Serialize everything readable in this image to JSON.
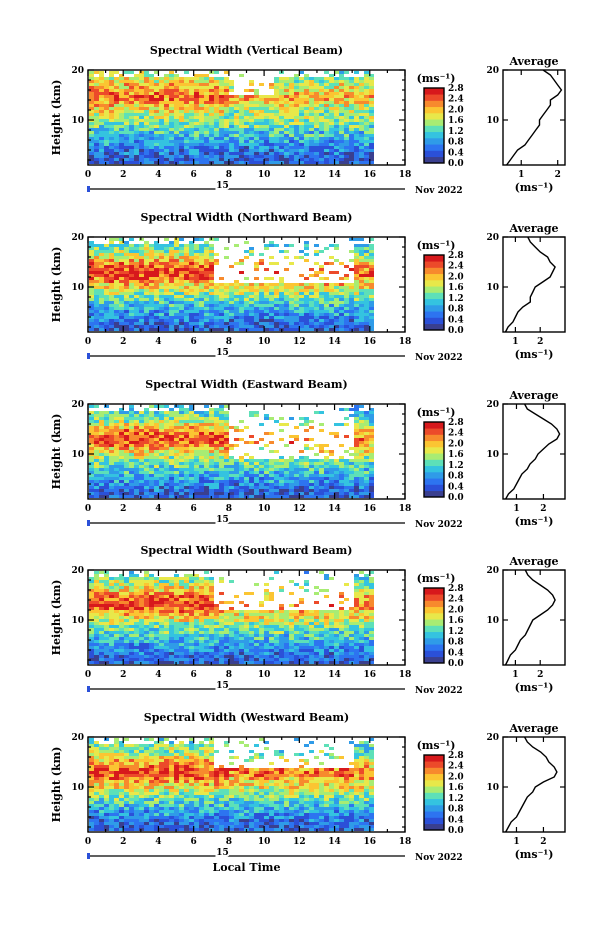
{
  "figure": {
    "x_label": "Local Time",
    "date_label": "Nov 2022",
    "day_label": "15",
    "y_label": "Height (km)",
    "colorbar_unit": "(ms⁻¹)",
    "avg_title": "Average",
    "avg_xlabel": "(ms⁻¹)"
  },
  "colors": {
    "background": "#ffffff",
    "axis": "#000000",
    "colormap": [
      "#3a3f8f",
      "#2b50d8",
      "#2d74f0",
      "#2f9be8",
      "#34c3e0",
      "#5de0b8",
      "#a8ec73",
      "#e8e84a",
      "#fbc532",
      "#f78a2d",
      "#ec4a2a",
      "#d7191c"
    ]
  },
  "chart_data": [
    {
      "type": "heatmap",
      "title": "Spectral Width (Vertical Beam)",
      "xlabel": "",
      "ylabel": "Height (km)",
      "xlim": [
        0,
        18
      ],
      "ylim": [
        1,
        20
      ],
      "x_ticks": [
        "0",
        "2",
        "4",
        "6",
        "8",
        "10",
        "12",
        "14",
        "16",
        "18"
      ],
      "y_ticks": [
        "10",
        "20"
      ],
      "data_end_hour": 16,
      "data_gap": [
        8,
        10.5,
        15,
        20
      ],
      "colorbar": {
        "min": 0.0,
        "max": 2.8,
        "ticks": [
          "0.0",
          "0.4",
          "0.8",
          "1.2",
          "1.6",
          "2.0",
          "2.4",
          "2.8"
        ]
      },
      "height_profile_km": [
        1,
        3,
        5,
        7,
        9,
        11,
        13,
        15,
        17,
        19
      ],
      "width_profile_ms": [
        0.4,
        0.5,
        0.7,
        1.0,
        1.3,
        1.6,
        2.0,
        2.3,
        2.0,
        1.6
      ],
      "average": {
        "type": "line",
        "xlim": [
          0.5,
          2.2
        ],
        "x_ticks": [
          "1",
          "2"
        ],
        "y_ticks": [
          "10",
          "20"
        ],
        "height": [
          1,
          2,
          3,
          4,
          5,
          6,
          7,
          8,
          9,
          10,
          11,
          12,
          13,
          14,
          15,
          16,
          17,
          18,
          19,
          20
        ],
        "value": [
          0.6,
          0.7,
          0.8,
          0.9,
          1.1,
          1.2,
          1.3,
          1.4,
          1.5,
          1.5,
          1.6,
          1.7,
          1.8,
          1.8,
          2.0,
          2.1,
          2.0,
          1.9,
          1.8,
          1.6
        ]
      }
    },
    {
      "type": "heatmap",
      "title": "Spectral Width (Northward Beam)",
      "xlabel": "",
      "ylabel": "Height (km)",
      "xlim": [
        0,
        18
      ],
      "ylim": [
        1,
        20
      ],
      "x_ticks": [
        "0",
        "2",
        "4",
        "6",
        "8",
        "10",
        "12",
        "14",
        "16",
        "18"
      ],
      "y_ticks": [
        "10",
        "20"
      ],
      "data_end_hour": 16,
      "data_gap": [
        7,
        15,
        11,
        20
      ],
      "colorbar": {
        "min": 0.0,
        "max": 2.8,
        "ticks": [
          "0.0",
          "0.4",
          "0.8",
          "1.2",
          "1.6",
          "2.0",
          "2.4",
          "2.8"
        ]
      },
      "height_profile_km": [
        1,
        3,
        5,
        7,
        9,
        11,
        13,
        15,
        17,
        19
      ],
      "width_profile_ms": [
        0.4,
        0.5,
        0.8,
        1.1,
        1.5,
        2.0,
        2.6,
        2.2,
        1.6,
        1.3
      ],
      "average": {
        "type": "line",
        "xlim": [
          0.5,
          3.0
        ],
        "x_ticks": [
          "1",
          "2"
        ],
        "y_ticks": [
          "10",
          "20"
        ],
        "height": [
          1,
          2,
          3,
          4,
          5,
          6,
          7,
          8,
          9,
          10,
          11,
          12,
          13,
          14,
          15,
          16,
          17,
          18,
          19,
          20
        ],
        "value": [
          0.6,
          0.7,
          0.9,
          1.0,
          1.1,
          1.3,
          1.6,
          1.6,
          1.7,
          1.8,
          2.1,
          2.4,
          2.5,
          2.6,
          2.4,
          2.3,
          2.0,
          1.8,
          1.6,
          1.5
        ]
      }
    },
    {
      "type": "heatmap",
      "title": "Spectral Width (Eastward Beam)",
      "xlabel": "",
      "ylabel": "Height (km)",
      "xlim": [
        0,
        18
      ],
      "ylim": [
        1,
        20
      ],
      "x_ticks": [
        "0",
        "2",
        "4",
        "6",
        "8",
        "10",
        "12",
        "14",
        "16",
        "18"
      ],
      "y_ticks": [
        "10",
        "20"
      ],
      "data_end_hour": 16,
      "data_gap": [
        8,
        15,
        9,
        20
      ],
      "colorbar": {
        "min": 0.0,
        "max": 2.8,
        "ticks": [
          "0.0",
          "0.4",
          "0.8",
          "1.2",
          "1.6",
          "2.0",
          "2.4",
          "2.8"
        ]
      },
      "height_profile_km": [
        1,
        3,
        5,
        7,
        9,
        11,
        13,
        15,
        17,
        19
      ],
      "width_profile_ms": [
        0.4,
        0.5,
        0.8,
        1.1,
        1.4,
        1.9,
        2.5,
        2.2,
        1.5,
        1.2
      ],
      "average": {
        "type": "line",
        "xlim": [
          0.5,
          2.8
        ],
        "x_ticks": [
          "1",
          "2"
        ],
        "y_ticks": [
          "10",
          "20"
        ],
        "height": [
          1,
          2,
          3,
          4,
          5,
          6,
          7,
          8,
          9,
          10,
          11,
          12,
          13,
          14,
          15,
          16,
          17,
          18,
          19,
          20
        ],
        "value": [
          0.6,
          0.7,
          0.9,
          1.0,
          1.1,
          1.2,
          1.4,
          1.5,
          1.7,
          1.8,
          2.0,
          2.2,
          2.5,
          2.6,
          2.5,
          2.3,
          2.0,
          1.7,
          1.4,
          1.3
        ]
      }
    },
    {
      "type": "heatmap",
      "title": "Spectral Width (Southward Beam)",
      "xlabel": "",
      "ylabel": "Height (km)",
      "xlim": [
        0,
        18
      ],
      "ylim": [
        1,
        20
      ],
      "x_ticks": [
        "0",
        "2",
        "4",
        "6",
        "8",
        "10",
        "12",
        "14",
        "16",
        "18"
      ],
      "y_ticks": [
        "10",
        "20"
      ],
      "data_end_hour": 16,
      "data_gap": [
        7,
        15,
        12,
        20
      ],
      "colorbar": {
        "min": 0.0,
        "max": 2.8,
        "ticks": [
          "0.0",
          "0.4",
          "0.8",
          "1.2",
          "1.6",
          "2.0",
          "2.4",
          "2.8"
        ]
      },
      "height_profile_km": [
        1,
        3,
        5,
        7,
        9,
        11,
        13,
        15,
        17,
        19
      ],
      "width_profile_ms": [
        0.4,
        0.5,
        0.8,
        1.1,
        1.4,
        1.9,
        2.5,
        2.3,
        1.7,
        1.3
      ],
      "average": {
        "type": "line",
        "xlim": [
          0.5,
          3.0
        ],
        "x_ticks": [
          "1",
          "2"
        ],
        "y_ticks": [
          "10",
          "20"
        ],
        "height": [
          1,
          2,
          3,
          4,
          5,
          6,
          7,
          8,
          9,
          10,
          11,
          12,
          13,
          14,
          15,
          16,
          17,
          18,
          19,
          20
        ],
        "value": [
          0.6,
          0.7,
          0.8,
          1.0,
          1.1,
          1.2,
          1.4,
          1.5,
          1.6,
          1.7,
          2.0,
          2.3,
          2.5,
          2.6,
          2.5,
          2.3,
          2.0,
          1.7,
          1.5,
          1.4
        ]
      }
    },
    {
      "type": "heatmap",
      "title": "Spectral Width (Westward Beam)",
      "xlabel": "Local Time",
      "ylabel": "Height (km)",
      "xlim": [
        0,
        18
      ],
      "ylim": [
        1,
        20
      ],
      "x_ticks": [
        "0",
        "2",
        "4",
        "6",
        "8",
        "10",
        "12",
        "14",
        "16",
        "18"
      ],
      "y_ticks": [
        "10",
        "20"
      ],
      "data_end_hour": 16,
      "data_gap": [
        7,
        15,
        14,
        20
      ],
      "colorbar": {
        "min": 0.0,
        "max": 2.8,
        "ticks": [
          "0.0",
          "0.4",
          "0.8",
          "1.2",
          "1.6",
          "2.0",
          "2.4",
          "2.8"
        ]
      },
      "height_profile_km": [
        1,
        3,
        5,
        7,
        9,
        11,
        13,
        15,
        17,
        19
      ],
      "width_profile_ms": [
        0.4,
        0.5,
        0.8,
        1.1,
        1.5,
        2.0,
        2.6,
        2.1,
        1.6,
        1.3
      ],
      "average": {
        "type": "line",
        "xlim": [
          0.5,
          2.8
        ],
        "x_ticks": [
          "1",
          "2"
        ],
        "y_ticks": [
          "10",
          "20"
        ],
        "height": [
          1,
          2,
          3,
          4,
          5,
          6,
          7,
          8,
          9,
          10,
          11,
          12,
          13,
          14,
          15,
          16,
          17,
          18,
          19,
          20
        ],
        "value": [
          0.6,
          0.7,
          0.8,
          1.0,
          1.1,
          1.2,
          1.3,
          1.4,
          1.6,
          1.7,
          2.0,
          2.4,
          2.5,
          2.4,
          2.2,
          2.1,
          1.9,
          1.6,
          1.4,
          1.3
        ]
      }
    }
  ]
}
